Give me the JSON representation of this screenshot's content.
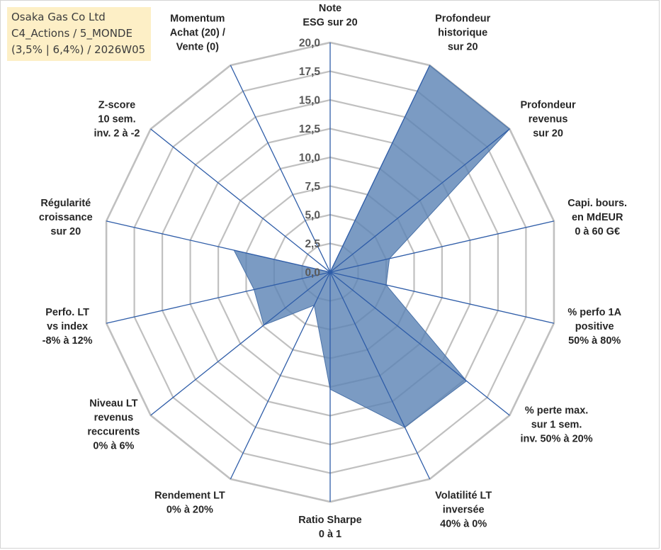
{
  "header": {
    "line1": "Osaka Gas Co Ltd",
    "line2": "C4_Actions / 5_MONDE",
    "line3": "(3,5% | 6,4%) / 2026W05"
  },
  "colors": {
    "grid": "#c0c0c0",
    "spoke": "#2f5da8",
    "fill": "#5a82b4",
    "fill_stroke": "#4a72a8"
  },
  "chart_data": {
    "type": "radar",
    "rmin": 0,
    "rmax": 20,
    "step": 2.5,
    "tick_labels": [
      "0,0",
      "2,5",
      "5,0",
      "7,5",
      "10,0",
      "12,5",
      "15,0",
      "17,5",
      "20,0"
    ],
    "axes": [
      {
        "label": [
          "Note",
          "ESG sur 20"
        ],
        "value": 0
      },
      {
        "label": [
          "Profondeur",
          "historique",
          "sur 20"
        ],
        "value": 20
      },
      {
        "label": [
          "Profondeur",
          "revenus",
          "sur 20"
        ],
        "value": 20
      },
      {
        "label": [
          "Capi. bours.",
          "en MdEUR",
          "0 à 60 G€"
        ],
        "value": 5.3
      },
      {
        "label": [
          "% perfo 1A",
          "positive",
          "50% à 80%"
        ],
        "value": 5.0
      },
      {
        "label": [
          "% perte max.",
          "sur 1 sem.",
          "inv. 50% à 20%"
        ],
        "value": 15.2
      },
      {
        "label": [
          "Volatilité LT",
          "inversée",
          "40% à 0%"
        ],
        "value": 15.0
      },
      {
        "label": [
          "Ratio Sharpe",
          "0 à 1"
        ],
        "value": 10.2
      },
      {
        "label": [
          "Rendement LT",
          "0% à 20%"
        ],
        "value": 3.2
      },
      {
        "label": [
          "Niveau LT",
          "revenus",
          "reccurents",
          "0% à 6%"
        ],
        "value": 7.4
      },
      {
        "label": [
          "Perfo. LT",
          "vs index",
          "-8% à 12%"
        ],
        "value": 6.8
      },
      {
        "label": [
          "Régularité",
          "croissance",
          "sur 20"
        ],
        "value": 8.6
      },
      {
        "label": [
          "Z-score",
          "10 sem.",
          "inv. 2 à -2"
        ],
        "value": 0
      },
      {
        "label": [
          "Momentum",
          "Achat (20) /",
          "Vente (0)"
        ],
        "value": 0
      }
    ]
  }
}
